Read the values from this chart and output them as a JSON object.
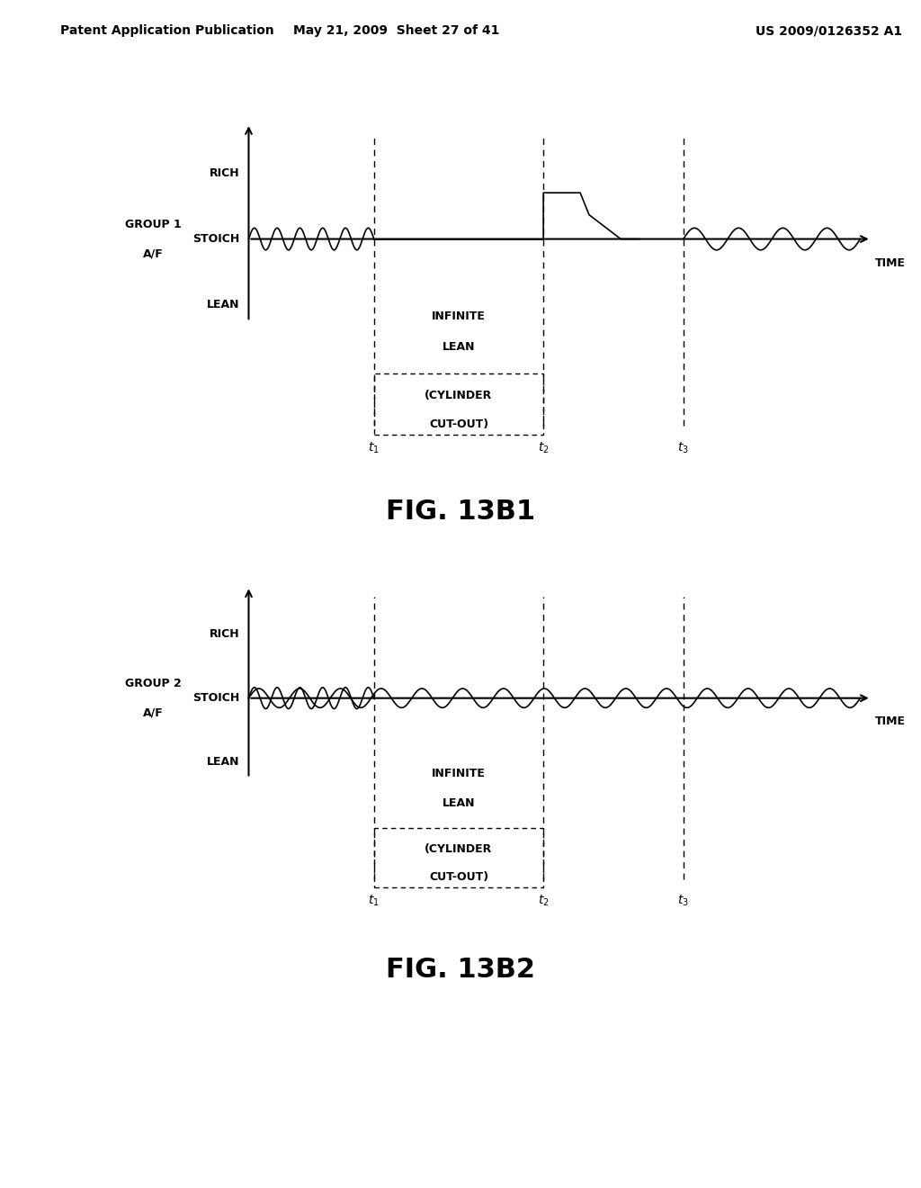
{
  "header_left": "Patent Application Publication",
  "header_center": "May 21, 2009  Sheet 27 of 41",
  "header_right": "US 2009/0126352 A1",
  "fig1_caption": "FIG. 13B1",
  "fig2_caption": "FIG. 13B2",
  "y_labels": [
    "RICH",
    "STOICH",
    "LEAN"
  ],
  "time_label": "TIME",
  "annotation_line1": "INFINITE",
  "annotation_line2": "LEAN",
  "annotation_line3": "(CYLINDER",
  "annotation_line4": "CUT-OUT)",
  "bg_color": "#ffffff",
  "stoich_y": 0.0,
  "rich_y": 0.6,
  "lean_y": -0.6,
  "t1_x": 3.2,
  "t2_x": 5.5,
  "t3_x": 7.4,
  "xmin": 0.0,
  "xmax": 10.0,
  "ymin": -2.2,
  "ymax": 1.2
}
